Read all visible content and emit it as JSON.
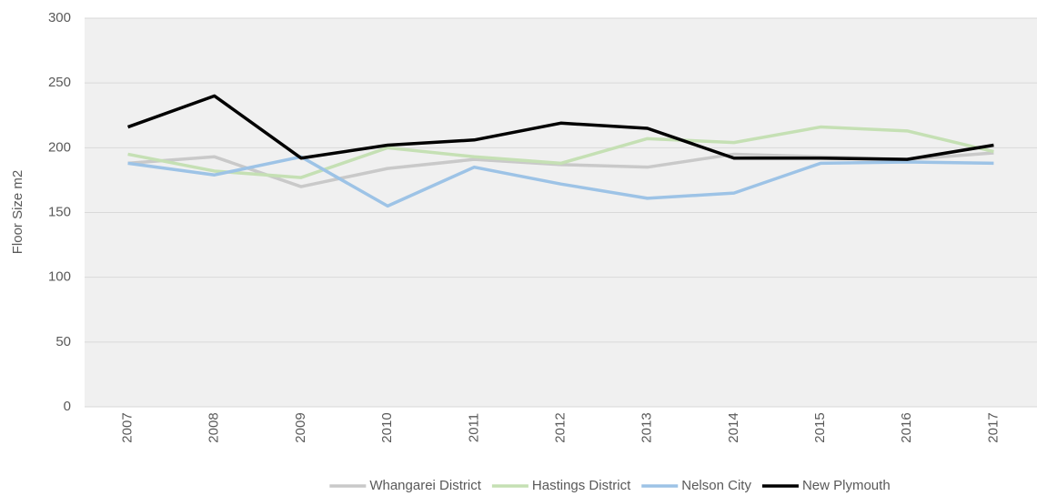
{
  "chart_data": {
    "type": "line",
    "y_label": "Floor Size m2",
    "categories": [
      "2007",
      "2008",
      "2009",
      "2010",
      "2011",
      "2012",
      "2013",
      "2014",
      "2015",
      "2016",
      "2017"
    ],
    "series": [
      {
        "name": "Whangarei District",
        "color": "#c9c9c9",
        "values": [
          188,
          193,
          170,
          184,
          191,
          187,
          185,
          195,
          193,
          191,
          196
        ]
      },
      {
        "name": "Hastings District",
        "color": "#c5e0b4",
        "values": [
          195,
          182,
          177,
          200,
          193,
          188,
          207,
          204,
          216,
          213,
          197
        ]
      },
      {
        "name": "Nelson City",
        "color": "#9dc3e6",
        "values": [
          188,
          179,
          193,
          155,
          185,
          172,
          161,
          165,
          188,
          189,
          188
        ]
      },
      {
        "name": "New Plymouth",
        "color": "#000000",
        "values": [
          216,
          240,
          192,
          202,
          206,
          219,
          215,
          192,
          192,
          191,
          202
        ]
      }
    ],
    "ylim": [
      0,
      300
    ],
    "yticks": [
      0,
      50,
      100,
      150,
      200,
      250,
      300
    ],
    "grid": true,
    "legend": "bottom"
  }
}
